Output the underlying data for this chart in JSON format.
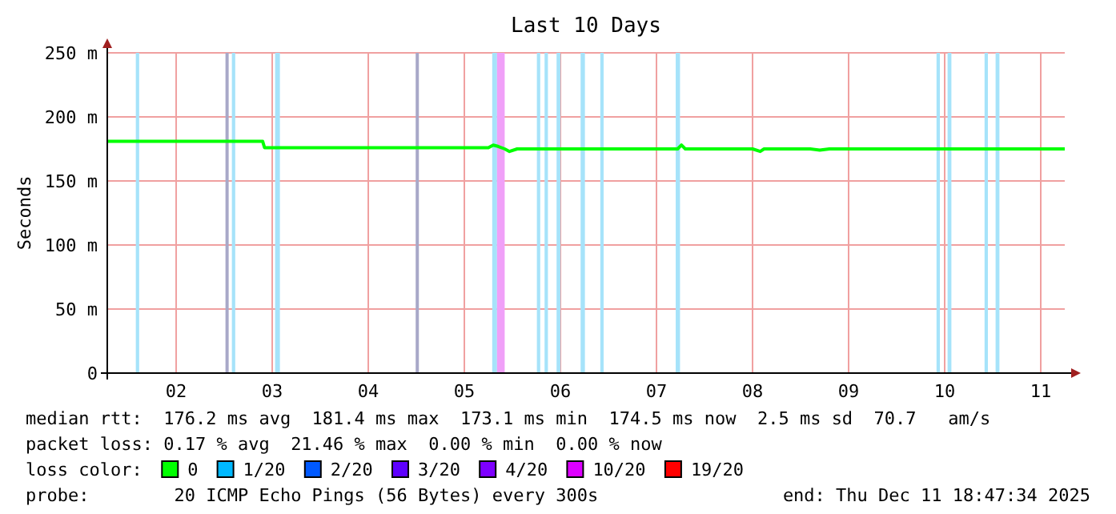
{
  "chart_data": {
    "type": "line",
    "title": "Last 10 Days",
    "ylabel": "Seconds",
    "xlim": [
      1.283,
      11.25
    ],
    "xticks": [
      {
        "value": 2,
        "label": "02"
      },
      {
        "value": 3,
        "label": "03"
      },
      {
        "value": 4,
        "label": "04"
      },
      {
        "value": 5,
        "label": "05"
      },
      {
        "value": 6,
        "label": "06"
      },
      {
        "value": 7,
        "label": "07"
      },
      {
        "value": 8,
        "label": "08"
      },
      {
        "value": 9,
        "label": "09"
      },
      {
        "value": 10,
        "label": "10"
      },
      {
        "value": 11,
        "label": "11"
      }
    ],
    "ylim": [
      0,
      250
    ],
    "yticks": [
      0,
      {
        "value": 50,
        "label": "50 m"
      },
      {
        "value": 100,
        "label": "100 m"
      },
      {
        "value": 150,
        "label": "150 m"
      },
      {
        "value": 200,
        "label": "200 m"
      },
      {
        "value": 250,
        "label": "250 m"
      }
    ],
    "grid": true,
    "legend": "bottom",
    "series": [
      {
        "name": "0",
        "color": "#00ff00",
        "x": [
          1.283,
          2.0,
          2.5,
          2.9,
          2.92,
          3.5,
          4.5,
          5.25,
          5.3,
          5.35,
          5.42,
          5.47,
          5.55,
          6.0,
          7.0,
          7.22,
          7.26,
          7.3,
          8.0,
          8.08,
          8.12,
          8.6,
          8.7,
          8.8,
          9.5,
          10.0,
          11.25
        ],
        "values": [
          181,
          181,
          181,
          181,
          176,
          176,
          176,
          176,
          178,
          177,
          175,
          173,
          175,
          175,
          175,
          175,
          178,
          175,
          175,
          173,
          175,
          175,
          174,
          175,
          175,
          175,
          175
        ]
      },
      {
        "name": "1/20",
        "color": "#00b8ff"
      },
      {
        "name": "2/20",
        "color": "#0059ff"
      },
      {
        "name": "3/20",
        "color": "#5e00ff"
      },
      {
        "name": "4/20",
        "color": "#7e00ff"
      },
      {
        "name": "10/20",
        "color": "#dd00ff"
      },
      {
        "name": "19/20",
        "color": "#ff0000"
      }
    ],
    "bands": [
      {
        "axis": "x",
        "from": 1.58,
        "to": 1.615,
        "color": "#a6e3fa"
      },
      {
        "axis": "x",
        "from": 2.58,
        "to": 2.615,
        "color": "#a6e3fa"
      },
      {
        "axis": "x",
        "from": 3.03,
        "to": 3.08,
        "color": "#a6e3fa"
      },
      {
        "axis": "x",
        "from": 5.29,
        "to": 5.34,
        "color": "#a6e3fa"
      },
      {
        "axis": "x",
        "from": 5.34,
        "to": 5.42,
        "color": "#f0a0f8"
      },
      {
        "axis": "x",
        "from": 5.755,
        "to": 5.79,
        "color": "#a6e3fa"
      },
      {
        "axis": "x",
        "from": 5.835,
        "to": 5.87,
        "color": "#a6e3fa"
      },
      {
        "axis": "x",
        "from": 5.96,
        "to": 6.0,
        "color": "#a6e3fa"
      },
      {
        "axis": "x",
        "from": 6.21,
        "to": 6.255,
        "color": "#a6e3fa"
      },
      {
        "axis": "x",
        "from": 6.415,
        "to": 6.45,
        "color": "#a6e3fa"
      },
      {
        "axis": "x",
        "from": 7.2,
        "to": 7.245,
        "color": "#a6e3fa"
      },
      {
        "axis": "x",
        "from": 9.915,
        "to": 9.95,
        "color": "#a6e3fa"
      },
      {
        "axis": "x",
        "from": 10.03,
        "to": 10.07,
        "color": "#a6e3fa"
      },
      {
        "axis": "x",
        "from": 10.415,
        "to": 10.45,
        "color": "#a6e3fa"
      },
      {
        "axis": "x",
        "from": 10.53,
        "to": 10.57,
        "color": "#a6e3fa"
      }
    ],
    "ref_lines": [
      {
        "axis": "x",
        "value": 2.53,
        "color": "#a8a8c8"
      },
      {
        "axis": "x",
        "value": 4.51,
        "color": "#a8a8c8"
      }
    ],
    "annotations": [
      "median rtt:  176.2 ms avg  181.4 ms max  173.1 ms min  174.5 ms now  2.5 ms sd  70.7   am/s",
      "packet loss: 0.17 % avg  21.46 % max  0.00 % min  0.00 % now",
      "loss color:",
      "probe:        20 ICMP Echo Pings (56 Bytes) every 300s",
      "end: Thu Dec 11 18:47:34 2025"
    ]
  }
}
